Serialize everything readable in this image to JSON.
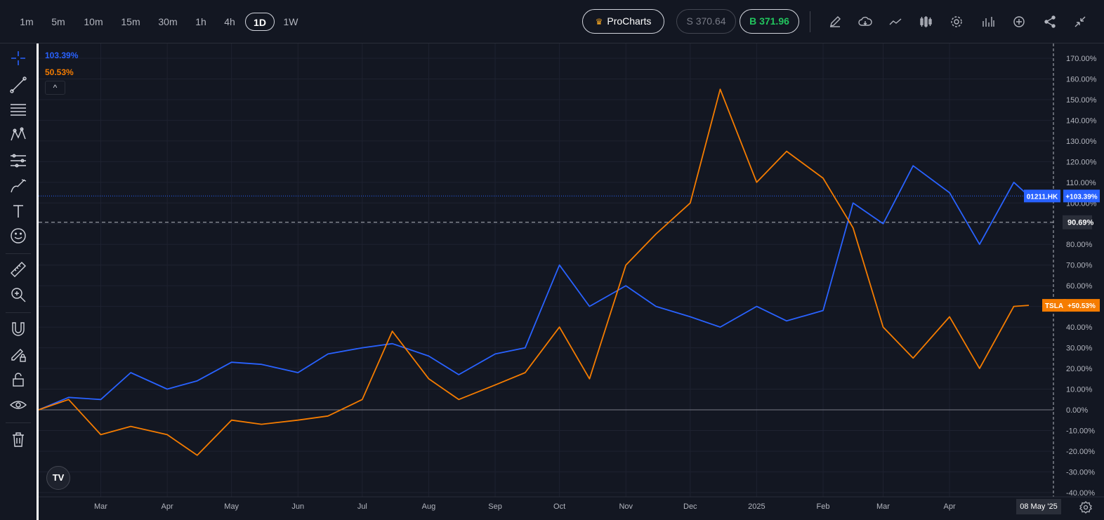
{
  "toolbar": {
    "timeframes": [
      "1m",
      "5m",
      "10m",
      "15m",
      "30m",
      "1h",
      "4h",
      "1D",
      "1W"
    ],
    "active_timeframe": "1D",
    "procharts_label": "ProCharts",
    "sell_label": "S 370.64",
    "buy_label": "B 371.96",
    "icons": [
      "pencil-icon",
      "cloud-icon",
      "indicator-icon",
      "candles-icon",
      "gear-icon",
      "bars-icon",
      "add-icon",
      "share-icon",
      "collapse-icon"
    ]
  },
  "left_tools": [
    "crosshair-icon",
    "trend-line-icon",
    "fib-icon",
    "pattern-icon",
    "gann-icon",
    "brush-icon",
    "text-icon",
    "emoji-icon",
    "ruler-icon",
    "zoom-icon",
    "magnet-icon",
    "lock-draw-icon",
    "lock-icon",
    "eye-icon",
    "trash-icon"
  ],
  "legend": {
    "blue_value": "103.39%",
    "orange_value": "50.53%",
    "collapse": "^"
  },
  "logo": "TV",
  "date_label": "08 May '25",
  "colors": {
    "background": "#131722",
    "grid": "#1e2230",
    "text": "#b2b5be",
    "blue_series": "#2962ff",
    "orange_series": "#f7931a",
    "blue_tag": "#2962ff",
    "orange_tag": "#f57c00"
  },
  "chart_data": {
    "type": "line",
    "x_tick_labels": [
      "Mar",
      "Apr",
      "May",
      "Jun",
      "Jul",
      "Aug",
      "Sep",
      "Oct",
      "Nov",
      "Dec",
      "2025",
      "Feb",
      "Mar",
      "Apr"
    ],
    "y_tick_labels": [
      "170.00%",
      "160.00%",
      "150.00%",
      "140.00%",
      "130.00%",
      "120.00%",
      "110.00%",
      "100.00%",
      "90.00%",
      "80.00%",
      "70.00%",
      "60.00%",
      "50.00%",
      "40.00%",
      "30.00%",
      "20.00%",
      "10.00%",
      "0.00%",
      "-10.00%",
      "-20.00%",
      "-30.00%",
      "-40.00%"
    ],
    "ylim": [
      -40,
      170
    ],
    "x": [
      "2024-02-01",
      "2024-02-15",
      "2024-03-01",
      "2024-03-15",
      "2024-04-01",
      "2024-04-15",
      "2024-05-01",
      "2024-05-15",
      "2024-06-01",
      "2024-06-15",
      "2024-07-01",
      "2024-07-15",
      "2024-08-01",
      "2024-08-15",
      "2024-09-01",
      "2024-09-15",
      "2024-10-01",
      "2024-10-15",
      "2024-11-01",
      "2024-11-15",
      "2024-12-01",
      "2024-12-15",
      "2025-01-01",
      "2025-01-15",
      "2025-02-01",
      "2025-02-15",
      "2025-03-01",
      "2025-03-15",
      "2025-04-01",
      "2025-04-15",
      "2025-05-01",
      "2025-05-08"
    ],
    "series": [
      {
        "name": "01211.HK",
        "color": "#2962ff",
        "last_label": "+103.39%",
        "values": [
          0,
          6,
          5,
          18,
          10,
          14,
          23,
          22,
          18,
          27,
          30,
          32,
          26,
          17,
          27,
          30,
          70,
          50,
          60,
          50,
          45,
          40,
          50,
          43,
          48,
          100,
          90,
          118,
          105,
          80,
          110,
          103.39
        ]
      },
      {
        "name": "TSLA",
        "color": "#f57c00",
        "last_label": "+50.53%",
        "values": [
          0,
          5,
          -12,
          -8,
          -12,
          -22,
          -5,
          -7,
          -5,
          -3,
          5,
          38,
          15,
          5,
          12,
          18,
          40,
          15,
          70,
          85,
          100,
          155,
          110,
          125,
          112,
          88,
          40,
          25,
          45,
          20,
          50,
          50.53
        ]
      }
    ],
    "reference_line": {
      "value": 90.69,
      "label": "90.69%"
    },
    "zero_line": 0
  }
}
